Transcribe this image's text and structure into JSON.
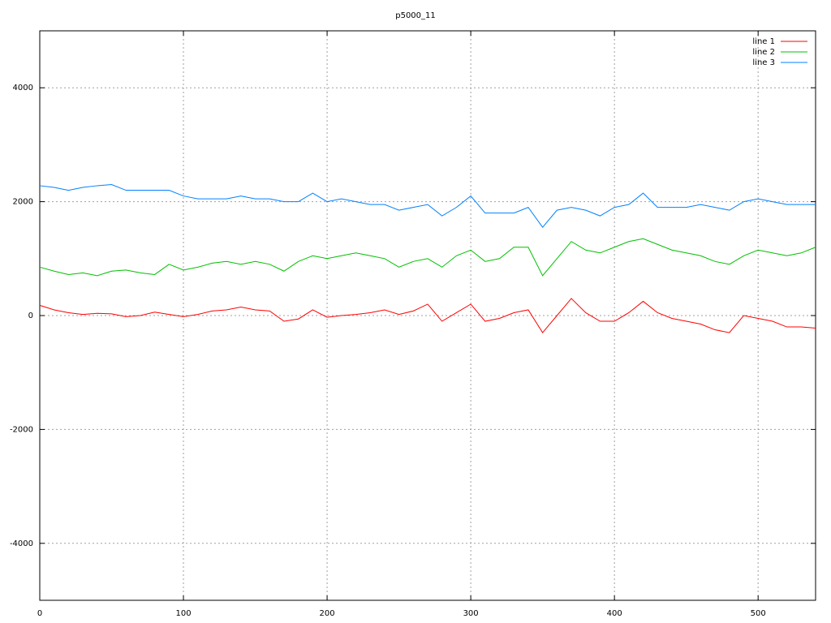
{
  "chart_data": {
    "type": "line",
    "title": "p5000_11",
    "x": [
      0,
      10,
      20,
      30,
      40,
      50,
      60,
      70,
      80,
      90,
      100,
      110,
      120,
      130,
      140,
      150,
      160,
      170,
      180,
      190,
      200,
      210,
      220,
      230,
      240,
      250,
      260,
      270,
      280,
      290,
      300,
      310,
      320,
      330,
      340,
      350,
      360,
      370,
      380,
      390,
      400,
      410,
      420,
      430,
      440,
      450,
      460,
      470,
      480,
      490,
      500,
      510,
      520,
      530,
      540
    ],
    "series": [
      {
        "name": "line 1",
        "color": "#ff0000",
        "values": [
          180,
          100,
          50,
          20,
          40,
          30,
          -20,
          0,
          60,
          20,
          -20,
          20,
          80,
          100,
          150,
          100,
          80,
          -100,
          -60,
          100,
          -30,
          0,
          20,
          50,
          100,
          20,
          80,
          200,
          -100,
          50,
          200,
          -100,
          -50,
          50,
          100,
          -300,
          0,
          300,
          50,
          -100,
          -100,
          50,
          250,
          50,
          -50,
          -100,
          -150,
          -250,
          -300,
          0,
          -50,
          -100,
          -200,
          -200,
          -220
        ]
      },
      {
        "name": "line 2",
        "color": "#00c000",
        "values": [
          850,
          780,
          720,
          750,
          700,
          780,
          800,
          750,
          720,
          900,
          800,
          850,
          920,
          950,
          900,
          950,
          900,
          780,
          950,
          1050,
          1000,
          1050,
          1100,
          1050,
          1000,
          850,
          950,
          1000,
          850,
          1050,
          1150,
          950,
          1000,
          1200,
          1200,
          700,
          1000,
          1300,
          1150,
          1100,
          1200,
          1300,
          1350,
          1250,
          1150,
          1100,
          1050,
          950,
          900,
          1050,
          1150,
          1100,
          1050,
          1100,
          1200
        ]
      },
      {
        "name": "line 3",
        "color": "#0080ff",
        "values": [
          2280,
          2250,
          2200,
          2250,
          2280,
          2300,
          2200,
          2200,
          2200,
          2200,
          2100,
          2050,
          2050,
          2050,
          2100,
          2050,
          2050,
          2000,
          2000,
          2150,
          2000,
          2050,
          2000,
          1950,
          1950,
          1850,
          1900,
          1950,
          1750,
          1900,
          2100,
          1800,
          1800,
          1800,
          1900,
          1550,
          1850,
          1900,
          1850,
          1750,
          1900,
          1950,
          2150,
          1900,
          1900,
          1900,
          1950,
          1900,
          1850,
          2000,
          2050,
          2000,
          1950,
          1950,
          1950
        ]
      }
    ],
    "xlim": [
      0,
      540
    ],
    "xticks": [
      0,
      100,
      200,
      300,
      400,
      500
    ],
    "ylim": [
      -5000,
      5000
    ],
    "yticks": [
      -4000,
      -2000,
      0,
      2000,
      4000
    ],
    "grid": true,
    "legend": "top-right"
  }
}
